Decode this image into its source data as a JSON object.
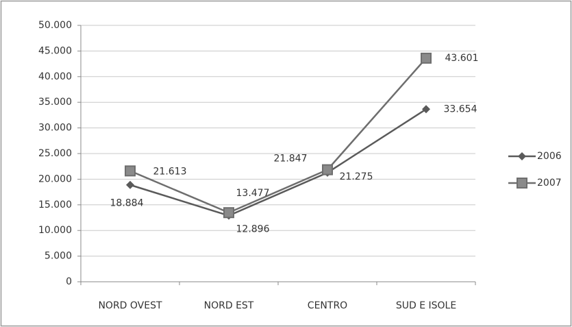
{
  "chart_data": {
    "type": "line",
    "categories": [
      "NORD OVEST",
      "NORD EST",
      "CENTRO",
      "SUD E ISOLE"
    ],
    "series": [
      {
        "name": "2006",
        "color": "#5a5a5a",
        "marker": "diamond",
        "values": [
          18884,
          12896,
          21275,
          33654
        ],
        "value_labels": [
          "18.884",
          "12.896",
          "21.275",
          "33.654"
        ]
      },
      {
        "name": "2007",
        "color": "#6e6e6e",
        "marker": "square",
        "values": [
          21613,
          13477,
          21847,
          43601
        ],
        "value_labels": [
          "21.613",
          "13.477",
          "21.847",
          "43.601"
        ]
      }
    ],
    "ylim": [
      0,
      50000
    ],
    "yticks": [
      {
        "value": 0,
        "label": "0"
      },
      {
        "value": 5000,
        "label": "5.000"
      },
      {
        "value": 10000,
        "label": "10.000"
      },
      {
        "value": 15000,
        "label": "15.000"
      },
      {
        "value": 20000,
        "label": "20.000"
      },
      {
        "value": 25000,
        "label": "25.000"
      },
      {
        "value": 30000,
        "label": "30.000"
      },
      {
        "value": 35000,
        "label": "35.000"
      },
      {
        "value": 40000,
        "label": "40.000"
      },
      {
        "value": 45000,
        "label": "45.000"
      },
      {
        "value": 50000,
        "label": "50.000"
      }
    ],
    "grid": true,
    "legend": "right"
  }
}
